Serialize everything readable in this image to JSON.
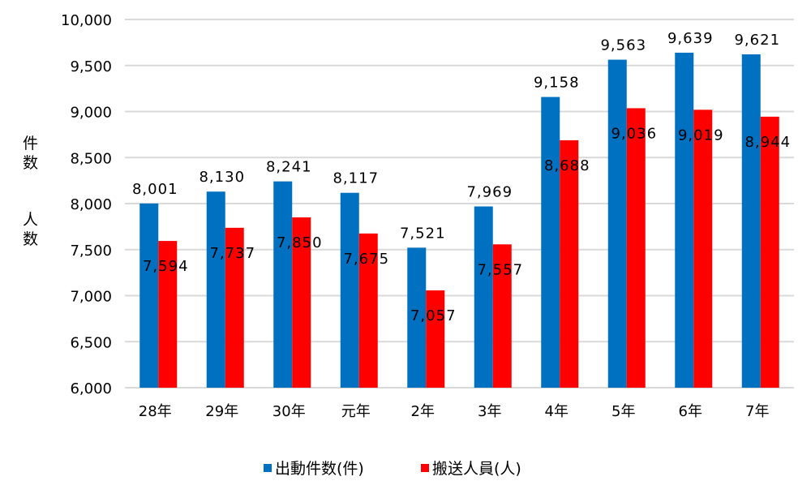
{
  "chart_data": {
    "type": "bar",
    "title": "",
    "ylabel_parts": [
      "件数",
      "人数"
    ],
    "xlabel": "",
    "categories": [
      "28年",
      "29年",
      "30年",
      "元年",
      "2年",
      "3年",
      "4年",
      "5年",
      "6年",
      "7年"
    ],
    "series": [
      {
        "name": "出動件数(件)",
        "color": "#0070C0",
        "values": [
          8001,
          8130,
          8241,
          8117,
          7521,
          7969,
          9158,
          9563,
          9639,
          9621
        ],
        "labels": [
          "8,001",
          "8,130",
          "8,241",
          "8,117",
          "7,521",
          "7,969",
          "9,158",
          "9,563",
          "9,639",
          "9,621"
        ]
      },
      {
        "name": "搬送人員(人)",
        "color": "#FF0000",
        "values": [
          7594,
          7737,
          7850,
          7675,
          7057,
          7557,
          8688,
          9036,
          9019,
          8944
        ],
        "labels": [
          "7,594",
          "7,737",
          "7,850",
          "7,675",
          "7,057",
          "7,557",
          "8,688",
          "9,036",
          "9,019",
          "8,944"
        ]
      }
    ],
    "ylim": [
      6000,
      10000
    ],
    "yticks": [
      6000,
      6500,
      7000,
      7500,
      8000,
      8500,
      9000,
      9500,
      10000
    ],
    "ytick_labels": [
      "6,000",
      "6,500",
      "7,000",
      "7,500",
      "8,000",
      "8,500",
      "9,000",
      "9,500",
      "10,000"
    ],
    "grid": true,
    "legend_position": "bottom",
    "legend": [
      "出動件数(件)",
      "搬送人員(人)"
    ]
  }
}
